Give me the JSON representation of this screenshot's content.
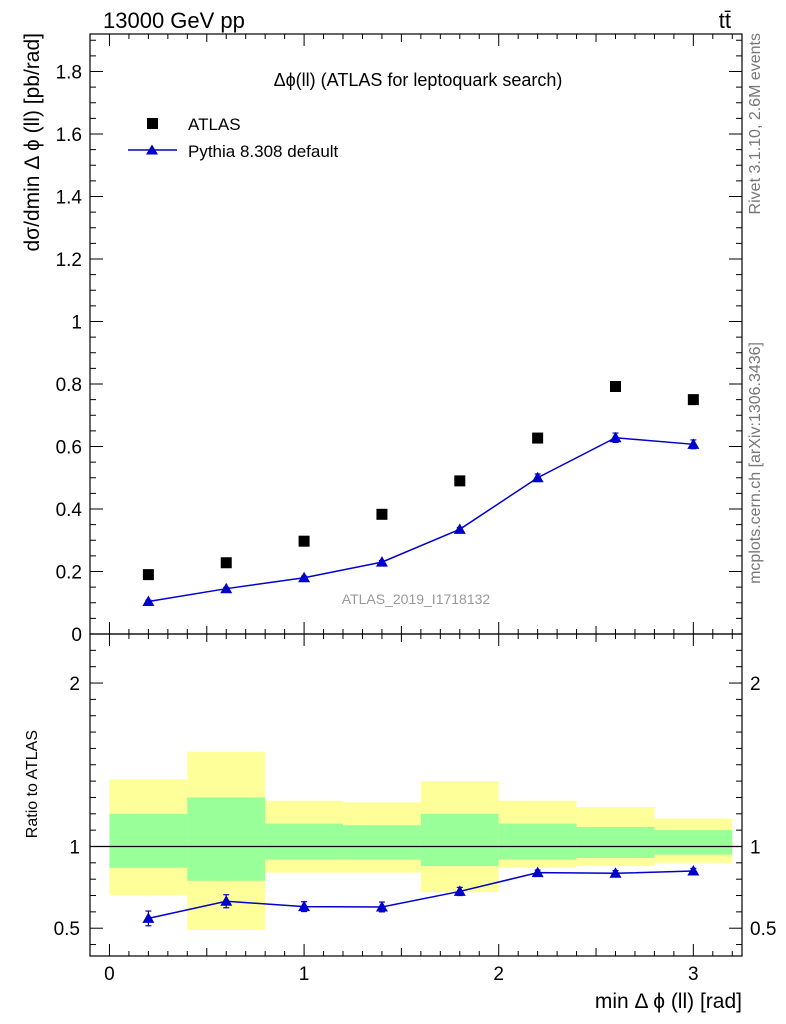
{
  "header": {
    "energy_label": "13000 GeV pp",
    "process_label": "tt̄"
  },
  "side_text": {
    "rivet": "Rivet 3.1.10,  2.6M events",
    "mcplots": "mcplots.cern.ch [arXiv:1306.3436]"
  },
  "chart_data": [
    {
      "type": "scatter",
      "title": "Δϕ(ll) (ATLAS for leptoquark search)",
      "watermark": "ATLAS_2019_I1718132",
      "xlabel": "",
      "ylabel": "dσ/dmin Δ ϕ (ll) [pb/rad]",
      "xlim": [
        -0.1,
        3.25
      ],
      "ylim": [
        0,
        1.92
      ],
      "yticks": [
        0,
        0.2,
        0.4,
        0.6,
        0.8,
        1,
        1.2,
        1.4,
        1.6,
        1.8
      ],
      "ytick_labels": [
        "0",
        "0.2",
        "0.4",
        "0.6",
        "0.8",
        "1",
        "1.2",
        "1.4",
        "1.6",
        "1.8"
      ],
      "legend_position": "top-left",
      "x": [
        0.2,
        0.6,
        1.0,
        1.4,
        1.8,
        2.2,
        2.6,
        3.0
      ],
      "series": [
        {
          "name": "ATLAS",
          "marker": "square",
          "color": "#000000",
          "values": [
            0.19,
            0.228,
            0.297,
            0.383,
            0.49,
            0.627,
            0.792,
            0.75
          ]
        },
        {
          "name": "Pythia 8.308 default",
          "marker": "triangle",
          "line": true,
          "color": "#0000cc",
          "values": [
            0.104,
            0.145,
            0.18,
            0.23,
            0.335,
            0.5,
            0.628,
            0.607
          ],
          "errors": [
            0.004,
            0.004,
            0.005,
            0.005,
            0.006,
            0.012,
            0.015,
            0.014
          ]
        }
      ]
    },
    {
      "type": "scatter",
      "xlabel": "min Δ ϕ (ll) [rad]",
      "ylabel": "Ratio to ATLAS",
      "xlim": [
        -0.1,
        3.25
      ],
      "ylim": [
        0.33,
        2.3
      ],
      "xticks": [
        0,
        1,
        2,
        3
      ],
      "xtick_labels": [
        "0",
        "1",
        "2",
        "3"
      ],
      "yticks": [
        0.5,
        1,
        2
      ],
      "ytick_labels": [
        "0.5",
        "1",
        "2"
      ],
      "reference_line": 1,
      "bins": [
        [
          0,
          0.4
        ],
        [
          0.4,
          0.8
        ],
        [
          0.8,
          1.2
        ],
        [
          1.2,
          1.6
        ],
        [
          1.6,
          2.0
        ],
        [
          2.0,
          2.4
        ],
        [
          2.4,
          2.8
        ],
        [
          2.8,
          3.2
        ]
      ],
      "bands": [
        {
          "name": "stat",
          "color": "#99ff99",
          "lower": [
            0.87,
            0.79,
            0.92,
            0.92,
            0.88,
            0.92,
            0.93,
            0.95
          ],
          "upper": [
            1.2,
            1.3,
            1.14,
            1.13,
            1.2,
            1.14,
            1.12,
            1.1
          ]
        },
        {
          "name": "total",
          "color": "#ffff99",
          "lower": [
            0.7,
            0.49,
            0.84,
            0.84,
            0.72,
            0.87,
            0.88,
            0.9
          ],
          "upper": [
            1.41,
            1.58,
            1.28,
            1.27,
            1.4,
            1.28,
            1.24,
            1.17
          ]
        }
      ],
      "x": [
        0.2,
        0.6,
        1.0,
        1.4,
        1.8,
        2.2,
        2.6,
        3.0
      ],
      "series": [
        {
          "name": "Pythia 8.308 default",
          "marker": "triangle",
          "line": true,
          "color": "#0000cc",
          "values": [
            0.56,
            0.665,
            0.632,
            0.63,
            0.725,
            0.84,
            0.836,
            0.85
          ],
          "errors": [
            0.045,
            0.04,
            0.03,
            0.03,
            0.025,
            0.016,
            0.016,
            0.016
          ]
        }
      ]
    }
  ]
}
